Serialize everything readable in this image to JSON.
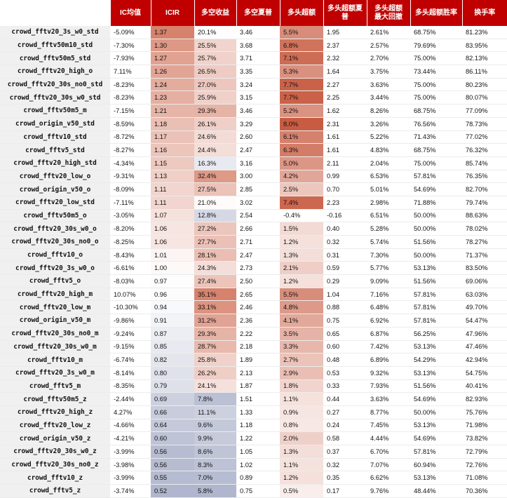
{
  "headers": [
    "IC均值",
    "ICIR",
    "多空收益",
    "多空夏普",
    "多头超额",
    "多头超额夏普",
    "多头超额\n最大回撤",
    "多头超额胜率",
    "换手率"
  ],
  "rows": [
    [
      "crowd_fftv20_3s_w0_std",
      "-5.09%",
      "1.37",
      "20.1%",
      "3.46",
      "5.5%",
      "1.95",
      "2.61%",
      "68.75%",
      "81.23%"
    ],
    [
      "crowd_fftv50m10_std",
      "-7.30%",
      "1.30",
      "25.5%",
      "3.68",
      "6.8%",
      "2.37",
      "2.57%",
      "79.69%",
      "83.95%"
    ],
    [
      "crowd_fftv50m5_std",
      "-7.93%",
      "1.27",
      "25.7%",
      "3.71",
      "7.1%",
      "2.32",
      "2.70%",
      "75.00%",
      "82.13%"
    ],
    [
      "crowd_fftv20_high_o",
      "7.11%",
      "1.26",
      "26.5%",
      "3.35",
      "5.3%",
      "1.64",
      "3.75%",
      "73.44%",
      "86.11%"
    ],
    [
      "crowd_fftv20_30s_no0_std",
      "-8.23%",
      "1.24",
      "27.0%",
      "3.24",
      "7.7%",
      "2.27",
      "3.63%",
      "75.00%",
      "80.23%"
    ],
    [
      "crowd_fftv20_30s_w0_std",
      "-8.23%",
      "1.23",
      "25.9%",
      "3.15",
      "7.7%",
      "2.25",
      "3.44%",
      "75.00%",
      "80.07%"
    ],
    [
      "crowd_fftv50m5_m",
      "-7.15%",
      "1.21",
      "29.3%",
      "3.46",
      "5.2%",
      "1.62",
      "8.26%",
      "68.75%",
      "77.09%"
    ],
    [
      "crowd_origin_v50_std",
      "-8.59%",
      "1.18",
      "26.1%",
      "3.29",
      "8.0%",
      "2.31",
      "3.26%",
      "76.56%",
      "78.73%"
    ],
    [
      "crowd_fftv10_std",
      "-8.72%",
      "1.17",
      "24.6%",
      "2.60",
      "6.1%",
      "1.61",
      "5.22%",
      "71.43%",
      "77.02%"
    ],
    [
      "crowd_fftv5_std",
      "-8.27%",
      "1.16",
      "24.4%",
      "2.47",
      "6.3%",
      "1.61",
      "4.83%",
      "68.75%",
      "76.32%"
    ],
    [
      "crowd_fftv20_high_std",
      "-4.34%",
      "1.15",
      "16.3%",
      "3.16",
      "5.0%",
      "2.11",
      "2.04%",
      "75.00%",
      "85.74%"
    ],
    [
      "crowd_fftv20_low_o",
      "-9.31%",
      "1.13",
      "32.4%",
      "3.00",
      "4.2%",
      "0.99",
      "6.53%",
      "57.81%",
      "76.35%"
    ],
    [
      "crowd_origin_v50_o",
      "-8.09%",
      "1.11",
      "27.5%",
      "2.85",
      "2.5%",
      "0.70",
      "5.01%",
      "54.69%",
      "82.70%"
    ],
    [
      "crowd_fftv20_low_std",
      "-7.11%",
      "1.11",
      "21.0%",
      "3.02",
      "7.4%",
      "2.23",
      "2.98%",
      "71.88%",
      "79.74%"
    ],
    [
      "crowd_fftv50m5_o",
      "-3.05%",
      "1.07",
      "12.8%",
      "2.54",
      "-0.4%",
      "-0.16",
      "6.51%",
      "50.00%",
      "88.63%"
    ],
    [
      "crowd_fftv20_30s_w0_o",
      "-8.20%",
      "1.06",
      "27.2%",
      "2.66",
      "1.5%",
      "0.40",
      "5.28%",
      "50.00%",
      "78.02%"
    ],
    [
      "crowd_fftv20_30s_no0_o",
      "-8.25%",
      "1.06",
      "27.7%",
      "2.71",
      "1.2%",
      "0.32",
      "5.74%",
      "51.56%",
      "78.27%"
    ],
    [
      "crowd_fftv10_o",
      "-8.43%",
      "1.01",
      "28.1%",
      "2.47",
      "1.3%",
      "0.31",
      "7.30%",
      "50.00%",
      "71.37%"
    ],
    [
      "crowd_fftv20_3s_w0_o",
      "-6.61%",
      "1.00",
      "24.3%",
      "2.73",
      "2.1%",
      "0.59",
      "5.77%",
      "53.13%",
      "83.50%"
    ],
    [
      "crowd_fftv5_o",
      "-8.03%",
      "0.97",
      "27.4%",
      "2.50",
      "1.2%",
      "0.29",
      "9.09%",
      "51.56%",
      "69.06%"
    ],
    [
      "crowd_fftv20_high_m",
      "10.07%",
      "0.96",
      "35.1%",
      "2.65",
      "5.5%",
      "1.04",
      "7.16%",
      "57.81%",
      "63.03%"
    ],
    [
      "crowd_fftv20_low_m",
      "-10.30%",
      "0.94",
      "33.1%",
      "2.46",
      "4.8%",
      "0.88",
      "6.48%",
      "57.81%",
      "49.70%"
    ],
    [
      "crowd_origin_v50_m",
      "-9.86%",
      "0.91",
      "31.2%",
      "2.36",
      "4.1%",
      "0.75",
      "6.92%",
      "57.81%",
      "54.47%"
    ],
    [
      "crowd_fftv20_30s_no0_m",
      "-9.24%",
      "0.87",
      "29.3%",
      "2.22",
      "3.5%",
      "0.65",
      "6.87%",
      "56.25%",
      "47.96%"
    ],
    [
      "crowd_fftv20_30s_w0_m",
      "-9.15%",
      "0.85",
      "28.7%",
      "2.18",
      "3.3%",
      "0.60",
      "7.42%",
      "53.13%",
      "47.46%"
    ],
    [
      "crowd_fftv10_m",
      "-6.74%",
      "0.82",
      "25.8%",
      "1.89",
      "2.7%",
      "0.48",
      "6.89%",
      "54.29%",
      "42.94%"
    ],
    [
      "crowd_fftv20_3s_w0_m",
      "-8.14%",
      "0.80",
      "26.2%",
      "2.13",
      "2.9%",
      "0.53",
      "9.32%",
      "53.13%",
      "54.75%"
    ],
    [
      "crowd_fftv5_m",
      "-8.35%",
      "0.79",
      "24.1%",
      "1.87",
      "1.8%",
      "0.33",
      "7.93%",
      "51.56%",
      "40.41%"
    ],
    [
      "crowd_fftv50m5_z",
      "-2.44%",
      "0.69",
      "7.8%",
      "1.51",
      "1.1%",
      "0.44",
      "3.63%",
      "54.69%",
      "82.93%"
    ],
    [
      "crowd_fftv20_high_z",
      "4.27%",
      "0.66",
      "11.1%",
      "1.33",
      "0.9%",
      "0.27",
      "8.77%",
      "50.00%",
      "75.76%"
    ],
    [
      "crowd_fftv20_low_z",
      "-4.66%",
      "0.64",
      "9.6%",
      "1.18",
      "0.8%",
      "0.24",
      "7.45%",
      "53.13%",
      "71.98%"
    ],
    [
      "crowd_origin_v50_z",
      "-4.21%",
      "0.60",
      "9.9%",
      "1.22",
      "2.0%",
      "0.58",
      "4.44%",
      "54.69%",
      "73.82%"
    ],
    [
      "crowd_fftv20_30s_w0_z",
      "-3.99%",
      "0.56",
      "8.6%",
      "1.05",
      "1.3%",
      "0.37",
      "6.70%",
      "57.81%",
      "72.79%"
    ],
    [
      "crowd_fftv20_30s_no0_z",
      "-3.98%",
      "0.56",
      "8.3%",
      "1.02",
      "1.1%",
      "0.32",
      "7.07%",
      "60.94%",
      "72.76%"
    ],
    [
      "crowd_fftv10_z",
      "-3.99%",
      "0.55",
      "7.0%",
      "0.89",
      "1.2%",
      "0.35",
      "6.62%",
      "53.13%",
      "71.08%"
    ],
    [
      "crowd_fftv5_z",
      "-3.74%",
      "0.52",
      "5.8%",
      "0.75",
      "0.5%",
      "0.17",
      "9.76%",
      "48.44%",
      "70.36%"
    ]
  ]
}
